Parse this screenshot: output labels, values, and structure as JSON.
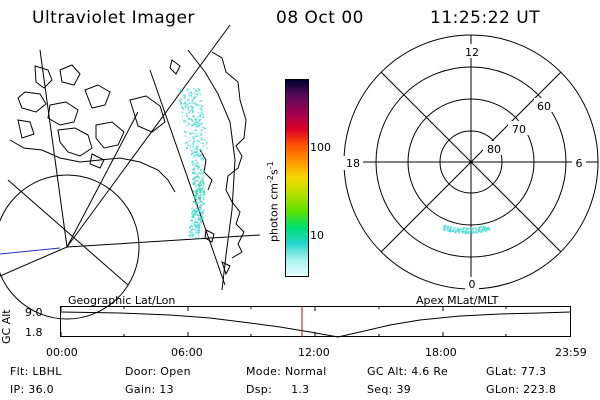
{
  "header": {
    "instrument": "Ultraviolet Imager",
    "date": "08 Oct 00",
    "time": "11:25:22 UT"
  },
  "colorbar": {
    "label_main": "photon cm",
    "label_sup1": "-2",
    "label_s": "s",
    "label_sup2": "-1",
    "ticks": [
      "100",
      "10"
    ],
    "colors": [
      "#000030",
      "#5a0a5a",
      "#a00050",
      "#d80028",
      "#ff5000",
      "#ff9a00",
      "#f5d800",
      "#b8e000",
      "#5ce000",
      "#00e070",
      "#20d4c8",
      "#aaf2ee",
      "#e6ffff"
    ]
  },
  "geo_panel": {
    "label": "Geographic Lat/Lon",
    "aurora_color": "#40d8d0",
    "aurora_core_color": "#18c890"
  },
  "polar_panel": {
    "label": "Apex MLat/MLT",
    "mlt_labels": {
      "top": "12",
      "left": "18",
      "right": "6",
      "bottom": "0"
    },
    "lat_labels": [
      "60",
      "70",
      "80"
    ]
  },
  "alt_plot": {
    "ylabel": "GC Alt",
    "y_ticks": [
      "9.0",
      "1.8"
    ],
    "x_ticks": [
      "00:00",
      "06:00",
      "12:00",
      "18:00",
      "23:59"
    ],
    "current_marker_color": "#d00000"
  },
  "info": {
    "row1": [
      {
        "label": "Flt:",
        "value": "LBHL"
      },
      {
        "label": "Door:",
        "value": "Open"
      },
      {
        "label": "Mode:",
        "value": "Normal"
      },
      {
        "label": "GC Alt:",
        "value": "4.6 Re"
      },
      {
        "label": "GLat:",
        "value": "77.3"
      }
    ],
    "row2": [
      {
        "label": "IP:",
        "value": "36.0"
      },
      {
        "label": "Gain:",
        "value": "13"
      },
      {
        "label": "Dsp:",
        "value": "1.3"
      },
      {
        "label": "Seq:",
        "value": "39"
      },
      {
        "label": "GLon:",
        "value": "223.8"
      }
    ]
  }
}
